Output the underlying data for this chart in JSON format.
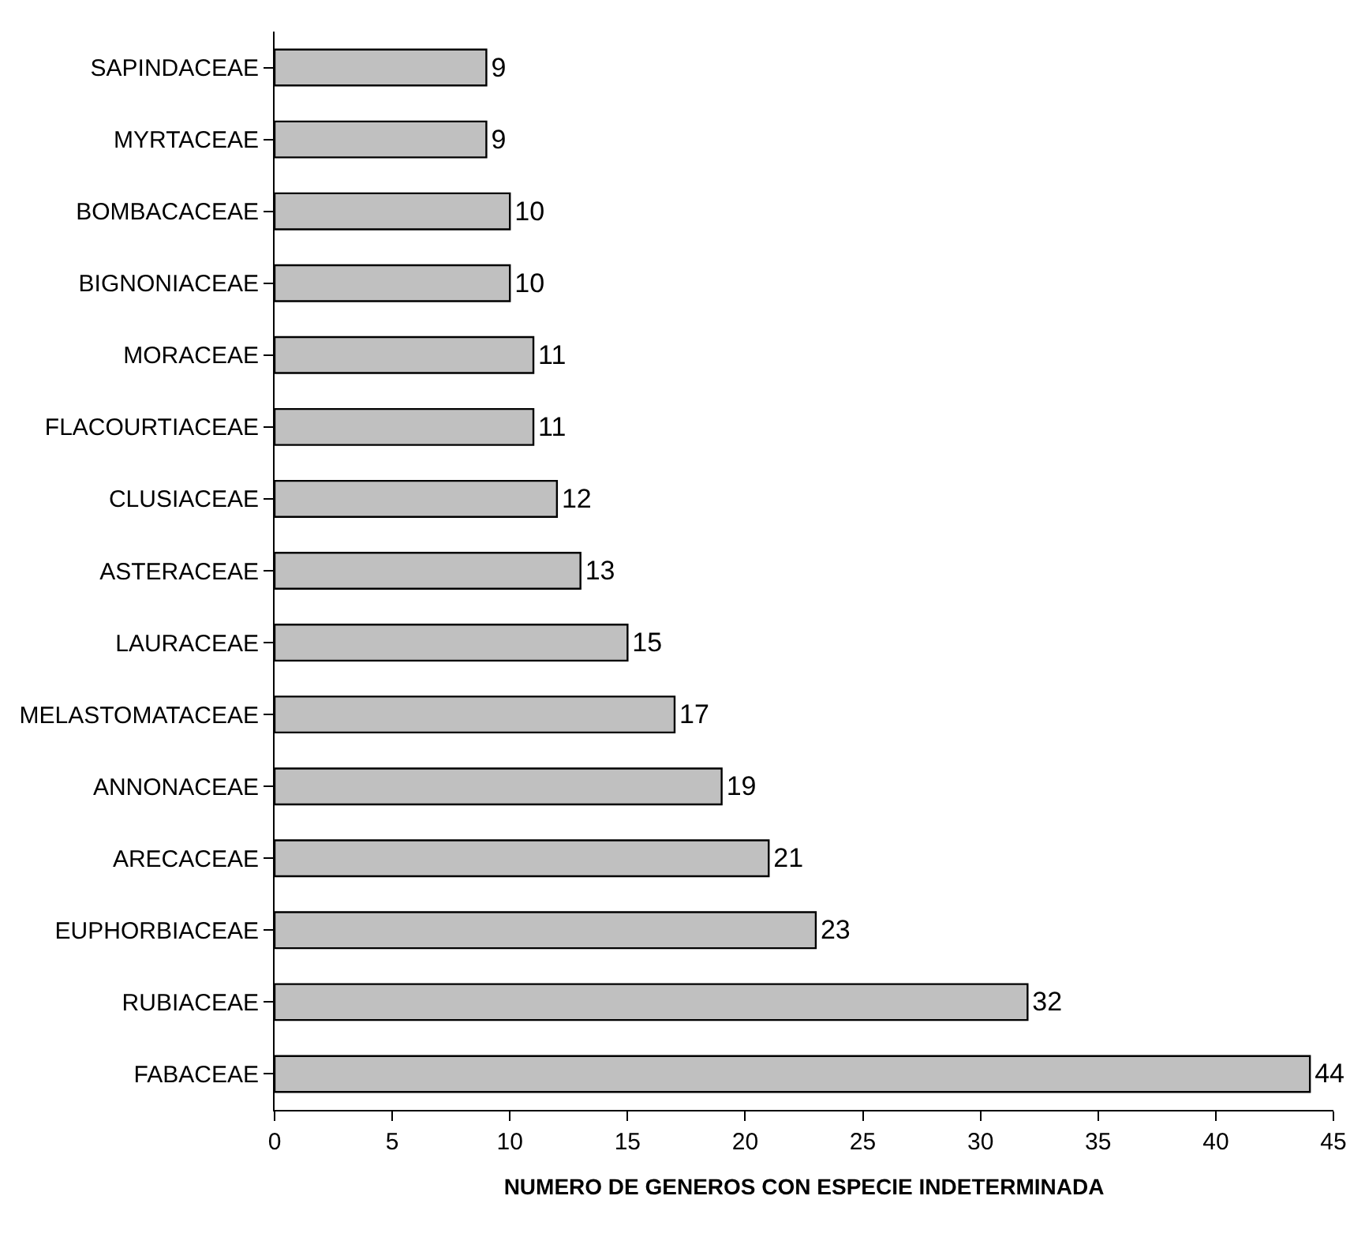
{
  "chart_data": {
    "type": "bar",
    "orientation": "horizontal",
    "xlabel": "NUMERO DE GENEROS CON ESPECIE INDETERMINADA",
    "categories": [
      "SAPINDACEAE",
      "MYRTACEAE",
      "BOMBACACEAE",
      "BIGNONIACEAE",
      "MORACEAE",
      "FLACOURTIACEAE",
      "CLUSIACEAE",
      "ASTERACEAE",
      "LAURACEAE",
      "MELASTOMATACEAE",
      "ANNONACEAE",
      "ARECACEAE",
      "EUPHORBIACEAE",
      "RUBIACEAE",
      "FABACEAE"
    ],
    "values": [
      9,
      9,
      10,
      10,
      11,
      11,
      12,
      13,
      15,
      17,
      19,
      21,
      23,
      32,
      44
    ],
    "color": "#c0c0c0",
    "xlim": [
      0,
      45
    ],
    "xticks": [
      0,
      5,
      10,
      15,
      20,
      25,
      30,
      35,
      40,
      45
    ],
    "data_labels": true
  }
}
